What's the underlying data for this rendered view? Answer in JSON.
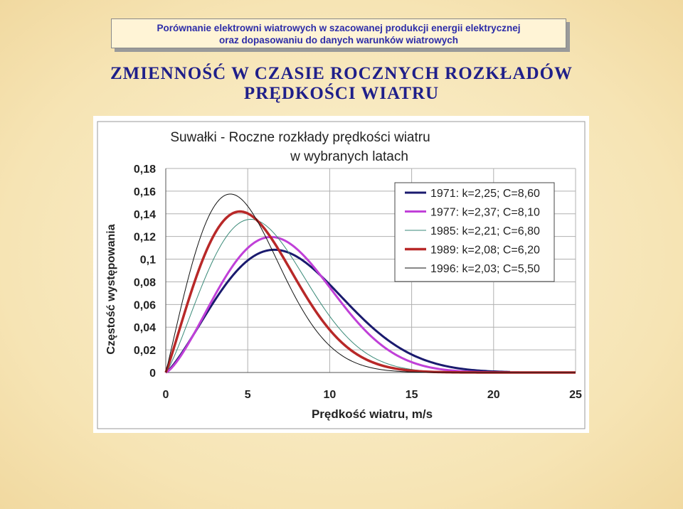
{
  "banner": {
    "line1": "Porównanie elektrowni wiatrowych w szacowanej produkcji energii elektrycznej",
    "line2": "oraz dopasowaniu do danych warunków wiatrowych"
  },
  "heading": {
    "line1": "ZMIENNOŚĆ W CZASIE ROCZNYCH ROZKŁADÓW",
    "line2": "PRĘDKOŚCI WIATRU"
  },
  "chart_data": {
    "type": "line",
    "title_line1": "Suwałki  -  Roczne rozkłady prędkości wiatru",
    "title_line2": "w  wybranych latach",
    "xlabel": "Prędkość wiatru,  m/s",
    "ylabel": "Częstość występowania",
    "xlim": [
      0,
      25
    ],
    "ylim": [
      0,
      0.18
    ],
    "x_ticks": [
      0,
      5,
      10,
      15,
      20,
      25
    ],
    "x_tick_labels": [
      "0",
      "5",
      "10",
      "15",
      "20",
      "25"
    ],
    "y_ticks": [
      0,
      0.02,
      0.04,
      0.06,
      0.08,
      0.1,
      0.12,
      0.14,
      0.16,
      0.18
    ],
    "y_tick_labels": [
      "0",
      "0,02",
      "0,04",
      "0,06",
      "0,08",
      "0,1",
      "0,12",
      "0,14",
      "0,16",
      "0,18"
    ],
    "grid": true,
    "legend_position": "top-right",
    "series": [
      {
        "name": "1971:  k=2,25; C=8,60",
        "k": 2.25,
        "C": 8.6,
        "x_max": 21,
        "color": "#1a1a6e",
        "width": 3
      },
      {
        "name": "1977:  k=2,37; C=8,10",
        "k": 2.37,
        "C": 8.1,
        "x_max": 25,
        "color": "#c040d8",
        "width": 3
      },
      {
        "name": "1985:  k=2,21; C=6,80",
        "k": 2.21,
        "C": 6.8,
        "x_max": 25,
        "color": "#3a8a78",
        "width": 1
      },
      {
        "name": "1989:  k=2,08; C=6,20",
        "k": 2.08,
        "C": 6.2,
        "x_max": 25,
        "color": "#b82828",
        "width": 3.5
      },
      {
        "name": "1996:  k=2,03; C=5,50",
        "k": 2.03,
        "C": 5.5,
        "x_max": 25,
        "color": "#111111",
        "width": 1
      }
    ]
  }
}
